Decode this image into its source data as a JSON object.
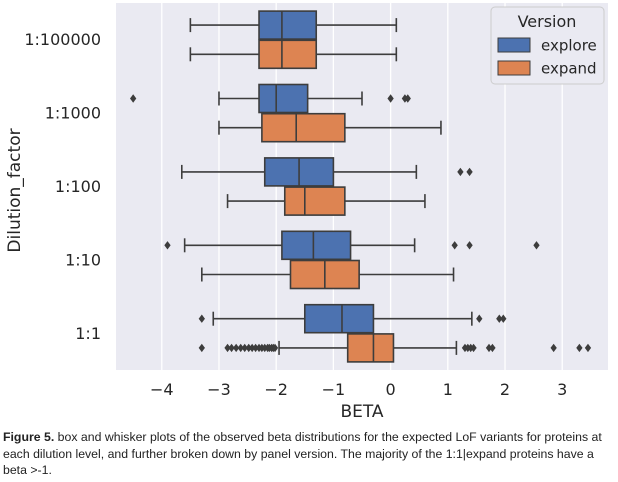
{
  "chart_data": {
    "type": "box",
    "orientation": "horizontal",
    "xlabel": "BETA",
    "ylabel": "Dilution_factor",
    "xlim": [
      -4.8,
      3.8
    ],
    "xticks": [
      -4,
      -3,
      -2,
      -1,
      0,
      1,
      2,
      3
    ],
    "xtick_labels": [
      "−4",
      "−3",
      "−2",
      "−1",
      "0",
      "1",
      "2",
      "3"
    ],
    "grid": true,
    "legend": {
      "title": "Version",
      "placement": "top-right"
    },
    "categories": [
      "1:100000",
      "1:1000",
      "1:100",
      "1:10",
      "1:1"
    ],
    "series": [
      {
        "name": "explore",
        "color": "#4c72b0",
        "boxes": [
          {
            "category": "1:100000",
            "whislo": -3.5,
            "q1": -2.3,
            "med": -1.9,
            "q3": -1.3,
            "whishi": 0.1,
            "fliers": []
          },
          {
            "category": "1:1000",
            "whislo": -3.0,
            "q1": -2.3,
            "med": -2.0,
            "q3": -1.45,
            "whishi": -0.5,
            "fliers": [
              -4.5,
              0,
              0.25,
              0.3
            ]
          },
          {
            "category": "1:100",
            "whislo": -3.65,
            "q1": -2.2,
            "med": -1.6,
            "q3": -1.0,
            "whishi": 0.45,
            "fliers": [
              1.22,
              1.38
            ]
          },
          {
            "category": "1:10",
            "whislo": -3.6,
            "q1": -1.9,
            "med": -1.35,
            "q3": -0.7,
            "whishi": 0.42,
            "fliers": [
              -3.9,
              1.12,
              1.38,
              2.55
            ]
          },
          {
            "category": "1:1",
            "whislo": -3.1,
            "q1": -1.5,
            "med": -0.85,
            "q3": -0.3,
            "whishi": 1.42,
            "fliers": [
              -3.3,
              1.55,
              1.9,
              1.97
            ]
          }
        ]
      },
      {
        "name": "expand",
        "color": "#dd8452",
        "boxes": [
          {
            "category": "1:100000",
            "whislo": -3.5,
            "q1": -2.3,
            "med": -1.9,
            "q3": -1.3,
            "whishi": 0.1,
            "fliers": []
          },
          {
            "category": "1:1000",
            "whislo": -3.0,
            "q1": -2.25,
            "med": -1.65,
            "q3": -0.8,
            "whishi": 0.88,
            "fliers": []
          },
          {
            "category": "1:100",
            "whislo": -2.85,
            "q1": -1.85,
            "med": -1.5,
            "q3": -0.8,
            "whishi": 0.6,
            "fliers": []
          },
          {
            "category": "1:10",
            "whislo": -3.3,
            "q1": -1.75,
            "med": -1.15,
            "q3": -0.55,
            "whishi": 1.1,
            "fliers": []
          },
          {
            "category": "1:1",
            "whislo": -1.95,
            "q1": -0.75,
            "med": -0.3,
            "q3": 0.05,
            "whishi": 1.15,
            "fliers": [
              -3.3,
              -2.85,
              -2.78,
              -2.7,
              -2.62,
              -2.55,
              -2.48,
              -2.42,
              -2.36,
              -2.3,
              -2.25,
              -2.2,
              -2.15,
              -2.12,
              -2.08,
              -2.05,
              -2.02,
              1.3,
              1.35,
              1.4,
              1.45,
              1.72,
              1.78,
              2.85,
              3.3,
              3.45
            ]
          }
        ]
      }
    ]
  },
  "caption": {
    "label": "Figure 5.",
    "text": "box and whisker plots of the observed beta distributions for the expected LoF variants for proteins at each dilution level, and further broken down by panel version. The majority of the 1:1|expand proteins have a beta >-1."
  }
}
